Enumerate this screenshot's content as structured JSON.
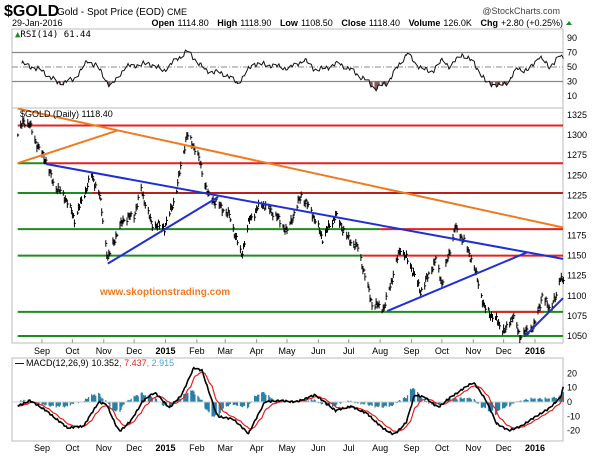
{
  "header": {
    "symbol": "$GOLD",
    "name": "Gold - Spot Price (EOD)",
    "exchange": "CME",
    "brand": "@StockCharts.com",
    "date": "29-Jan-2016",
    "open_label": "Open",
    "open": "1114.80",
    "high_label": "High",
    "high": "1118.90",
    "low_label": "Low",
    "low": "1108.50",
    "close_label": "Close",
    "close": "1118.40",
    "volume_label": "Volume",
    "volume": "126.0K",
    "chg_label": "Chg",
    "chg": "+2.80 (+0.25%)"
  },
  "colors": {
    "red": "#e8201a",
    "green": "#1f8c1f",
    "darkred": "#b82020",
    "blue": "#1f2fd6",
    "orange": "#f07a1e",
    "macd_hist": "#2a7fa6",
    "rsi_fill": "#8a5a5a"
  },
  "watermark": "www.skoptionstrading.com",
  "chart_data": [
    {
      "type": "line",
      "title": "RSI(14) 61.44",
      "yticks": [
        "90",
        "70",
        "50",
        "30",
        "10"
      ],
      "ylim": [
        0,
        100
      ],
      "levels": [
        70,
        50,
        30
      ],
      "series": [
        {
          "name": "RSI(14)",
          "points": [
            [
              "2014-08-12",
              55
            ],
            [
              "2014-09-01",
              45
            ],
            [
              "2014-09-16",
              28
            ],
            [
              "2014-10-02",
              32
            ],
            [
              "2014-10-16",
              58
            ],
            [
              "2014-10-25",
              52
            ],
            [
              "2014-11-08",
              22
            ],
            [
              "2014-11-22",
              50
            ],
            [
              "2014-12-15",
              55
            ],
            [
              "2014-12-30",
              45
            ],
            [
              "2015-01-22",
              72
            ],
            [
              "2015-02-10",
              45
            ],
            [
              "2015-03-02",
              40
            ],
            [
              "2015-03-13",
              27
            ],
            [
              "2015-03-29",
              55
            ],
            [
              "2015-04-17",
              52
            ],
            [
              "2015-05-03",
              48
            ],
            [
              "2015-05-18",
              60
            ],
            [
              "2015-05-30",
              45
            ],
            [
              "2015-06-22",
              55
            ],
            [
              "2015-07-04",
              45
            ],
            [
              "2015-07-20",
              30
            ],
            [
              "2015-07-27",
              20
            ],
            [
              "2015-08-08",
              28
            ],
            [
              "2015-08-28",
              70
            ],
            [
              "2015-09-04",
              55
            ],
            [
              "2015-09-20",
              42
            ],
            [
              "2015-10-02",
              60
            ],
            [
              "2015-10-09",
              50
            ],
            [
              "2015-10-21",
              68
            ],
            [
              "2015-11-02",
              55
            ],
            [
              "2015-11-13",
              30
            ],
            [
              "2015-11-27",
              23
            ],
            [
              "2015-12-07",
              32
            ],
            [
              "2015-12-15",
              48
            ],
            [
              "2015-12-26",
              45
            ],
            [
              "2016-01-05",
              65
            ],
            [
              "2016-01-15",
              50
            ],
            [
              "2016-01-26",
              65
            ],
            [
              "2016-01-29",
              61.44
            ]
          ]
        }
      ]
    },
    {
      "type": "line",
      "title": "$GOLD (Daily) 1118.40",
      "yticks": [
        "1325",
        "1300",
        "1275",
        "1250",
        "1225",
        "1200",
        "1175",
        "1150",
        "1125",
        "1100",
        "1075",
        "1050"
      ],
      "ylim": [
        1041,
        1335
      ],
      "xticks": [
        "Sep",
        "Oct",
        "Nov",
        "Dec",
        "2015",
        "Feb",
        "Mar",
        "Apr",
        "May",
        "Jun",
        "Jul",
        "Aug",
        "Sep",
        "Oct",
        "Nov",
        "Dec",
        "2016"
      ],
      "xtick_dates": [
        "2014-09-01",
        "2014-10-01",
        "2014-11-01",
        "2014-12-01",
        "2015-01-01",
        "2015-02-01",
        "2015-03-01",
        "2015-04-01",
        "2015-05-01",
        "2015-06-01",
        "2015-07-01",
        "2015-08-01",
        "2015-09-01",
        "2015-10-01",
        "2015-11-01",
        "2015-12-01",
        "2016-01-01"
      ],
      "series": [
        {
          "name": "$GOLD",
          "points": [
            [
              "2014-08-08",
              1300
            ],
            [
              "2014-08-14",
              1318
            ],
            [
              "2014-08-20",
              1312
            ],
            [
              "2014-08-28",
              1285
            ],
            [
              "2014-09-05",
              1268
            ],
            [
              "2014-09-12",
              1240
            ],
            [
              "2014-09-25",
              1220
            ],
            [
              "2014-10-03",
              1195
            ],
            [
              "2014-10-20",
              1250
            ],
            [
              "2014-10-28",
              1225
            ],
            [
              "2014-11-05",
              1145
            ],
            [
              "2014-11-10",
              1165
            ],
            [
              "2014-11-20",
              1195
            ],
            [
              "2014-12-01",
              1200
            ],
            [
              "2014-12-08",
              1232
            ],
            [
              "2014-12-18",
              1190
            ],
            [
              "2014-12-31",
              1185
            ],
            [
              "2015-01-10",
              1220
            ],
            [
              "2015-01-22",
              1300
            ],
            [
              "2015-02-01",
              1280
            ],
            [
              "2015-02-12",
              1225
            ],
            [
              "2015-02-25",
              1210
            ],
            [
              "2015-03-05",
              1200
            ],
            [
              "2015-03-17",
              1150
            ],
            [
              "2015-03-25",
              1195
            ],
            [
              "2015-04-06",
              1215
            ],
            [
              "2015-04-20",
              1200
            ],
            [
              "2015-05-01",
              1180
            ],
            [
              "2015-05-15",
              1225
            ],
            [
              "2015-05-25",
              1205
            ],
            [
              "2015-06-05",
              1172
            ],
            [
              "2015-06-18",
              1200
            ],
            [
              "2015-07-01",
              1170
            ],
            [
              "2015-07-10",
              1160
            ],
            [
              "2015-07-24",
              1090
            ],
            [
              "2015-08-05",
              1085
            ],
            [
              "2015-08-21",
              1160
            ],
            [
              "2015-09-01",
              1135
            ],
            [
              "2015-09-10",
              1105
            ],
            [
              "2015-09-25",
              1145
            ],
            [
              "2015-10-01",
              1115
            ],
            [
              "2015-10-14",
              1185
            ],
            [
              "2015-10-22",
              1170
            ],
            [
              "2015-11-01",
              1140
            ],
            [
              "2015-11-12",
              1085
            ],
            [
              "2015-11-25",
              1068
            ],
            [
              "2015-12-02",
              1055
            ],
            [
              "2015-12-10",
              1075
            ],
            [
              "2015-12-17",
              1050
            ],
            [
              "2015-12-31",
              1062
            ],
            [
              "2016-01-08",
              1100
            ],
            [
              "2016-01-15",
              1085
            ],
            [
              "2016-01-22",
              1098
            ],
            [
              "2016-01-26",
              1125
            ],
            [
              "2016-01-29",
              1118.4
            ]
          ]
        }
      ],
      "hlines": [
        {
          "price": 1312,
          "segments": [
            {
              "from": "2014-08-08",
              "to": "2016-01-29",
              "color": "red"
            }
          ]
        },
        {
          "price": 1265,
          "segments": [
            {
              "from": "2014-08-08",
              "to": "2014-09-05",
              "color": "green"
            },
            {
              "from": "2014-09-05",
              "to": "2016-01-29",
              "color": "red"
            }
          ]
        },
        {
          "price": 1228,
          "segments": [
            {
              "from": "2014-08-08",
              "to": "2014-10-20",
              "color": "green"
            },
            {
              "from": "2014-10-20",
              "to": "2016-01-29",
              "color": "darkred"
            }
          ]
        },
        {
          "price": 1183,
          "segments": [
            {
              "from": "2014-08-08",
              "to": "2015-08-01",
              "color": "green"
            },
            {
              "from": "2015-08-01",
              "to": "2016-01-29",
              "color": "red"
            }
          ]
        },
        {
          "price": 1150,
          "segments": [
            {
              "from": "2014-08-08",
              "to": "2015-07-15",
              "color": "green"
            },
            {
              "from": "2015-07-15",
              "to": "2016-01-29",
              "color": "red"
            }
          ]
        },
        {
          "price": 1080,
          "segments": [
            {
              "from": "2014-08-08",
              "to": "2016-01-29",
              "color": "green"
            },
            {
              "from": "2015-11-20",
              "to": "2016-01-10",
              "color": "red"
            }
          ]
        },
        {
          "price": 1050,
          "segments": [
            {
              "from": "2014-08-08",
              "to": "2016-01-29",
              "color": "green"
            }
          ]
        }
      ],
      "trendlines": [
        {
          "color": "orange",
          "from": [
            "2014-08-08",
            1333
          ],
          "to": [
            "2016-01-29",
            1185
          ]
        },
        {
          "color": "orange",
          "from": [
            "2014-08-08",
            1265
          ],
          "to": [
            "2014-11-15",
            1306
          ]
        },
        {
          "color": "blue",
          "from": [
            "2014-09-05",
            1264
          ],
          "to": [
            "2016-01-29",
            1146
          ]
        },
        {
          "color": "blue",
          "from": [
            "2014-11-05",
            1140
          ],
          "to": [
            "2015-02-22",
            1223
          ]
        },
        {
          "color": "blue",
          "from": [
            "2015-08-08",
            1081
          ],
          "to": [
            "2015-12-24",
            1154
          ]
        },
        {
          "color": "blue",
          "from": [
            "2015-12-22",
            1050
          ],
          "to": [
            "2016-01-29",
            1097
          ]
        }
      ]
    },
    {
      "type": "line",
      "title": "MACD(12,26,9)",
      "macd": "10.352",
      "signal": "7.437",
      "hist": "2.915",
      "yticks": [
        "20",
        "10",
        "0",
        "-10",
        "-20"
      ],
      "ylim": [
        -27,
        30
      ],
      "series": [
        {
          "name": "MACD",
          "points": [
            [
              "2014-08-08",
              -3
            ],
            [
              "2014-08-20",
              1
            ],
            [
              "2014-09-03",
              -5
            ],
            [
              "2014-09-26",
              -18
            ],
            [
              "2014-10-12",
              -17
            ],
            [
              "2014-10-27",
              0
            ],
            [
              "2014-11-04",
              -2
            ],
            [
              "2014-11-16",
              -21
            ],
            [
              "2014-11-28",
              -13
            ],
            [
              "2014-12-09",
              0
            ],
            [
              "2014-12-21",
              7
            ],
            [
              "2015-01-05",
              -4
            ],
            [
              "2015-01-17",
              5
            ],
            [
              "2015-01-29",
              24
            ],
            [
              "2015-02-06",
              22
            ],
            [
              "2015-02-21",
              -10
            ],
            [
              "2015-03-09",
              -12
            ],
            [
              "2015-03-24",
              -22
            ],
            [
              "2015-04-09",
              0
            ],
            [
              "2015-04-24",
              1
            ],
            [
              "2015-05-10",
              0
            ],
            [
              "2015-05-29",
              5
            ],
            [
              "2015-06-18",
              -6
            ],
            [
              "2015-07-03",
              -3
            ],
            [
              "2015-07-19",
              -8
            ],
            [
              "2015-08-03",
              -18
            ],
            [
              "2015-08-15",
              -23
            ],
            [
              "2015-08-27",
              -14
            ],
            [
              "2015-09-04",
              5
            ],
            [
              "2015-09-15",
              3
            ],
            [
              "2015-09-27",
              -4
            ],
            [
              "2015-10-09",
              3
            ],
            [
              "2015-11-01",
              14
            ],
            [
              "2015-11-13",
              2
            ],
            [
              "2015-11-24",
              -15
            ],
            [
              "2015-12-06",
              -20
            ],
            [
              "2015-12-18",
              -17
            ],
            [
              "2016-01-02",
              -10
            ],
            [
              "2016-01-14",
              -5
            ],
            [
              "2016-01-26",
              3
            ],
            [
              "2016-01-29",
              10.352
            ]
          ]
        }
      ]
    }
  ]
}
